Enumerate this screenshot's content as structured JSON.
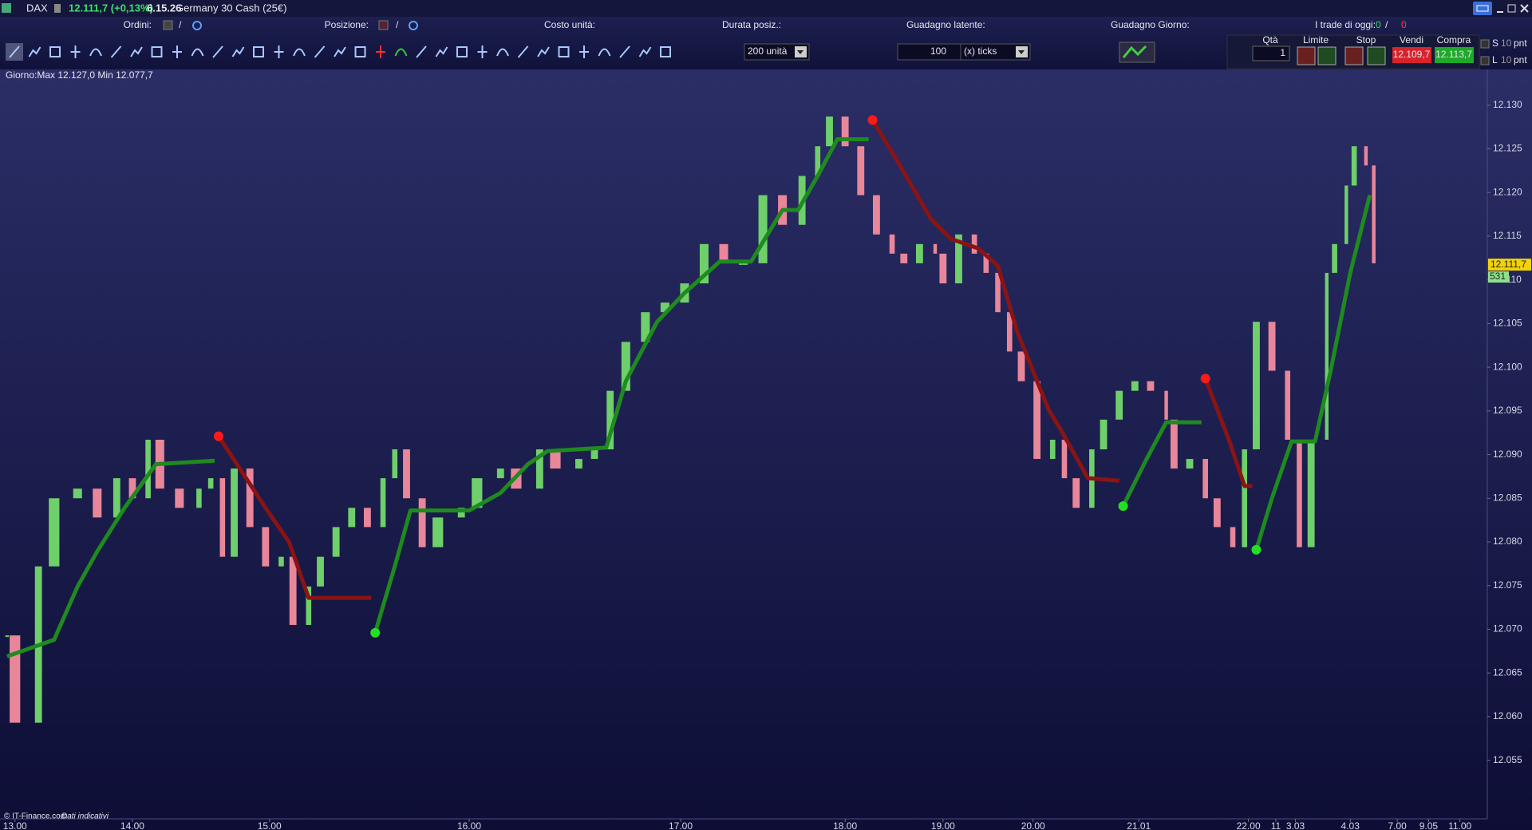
{
  "window": {
    "symbol": "DAX",
    "quote": "12.111,7 (+0,13%)",
    "clock": "6.15.26",
    "instrument": "Germany 30 Cash (25€)",
    "orders_label": "Ordini:",
    "orders_sep": "/",
    "position_label": "Posizione:",
    "position_sep": "/",
    "unit_cost_label": "Costo unità:",
    "duration_label": "Durata posiz.:",
    "latent_gain_label": "Guadagno latente:",
    "day_gain_label": "Guadagno Giorno:",
    "trades_label": "I trade di oggi:",
    "trades_won": "0",
    "trades_sep": "/",
    "trades_lost": "0",
    "units_select": "200 unità",
    "ticks_input": "100",
    "ticks_select": "(x) ticks",
    "qty_label": "Qtà",
    "qty_input": "1",
    "limit_label": "Limite",
    "stop_label": "Stop",
    "sell_label": "Vendi",
    "buy_label": "Compra",
    "sell_price": "12.109,7",
    "buy_price": "12.113,7",
    "s_label": "S",
    "l_label": "L",
    "s_pnt": "10",
    "l_pnt": "10",
    "pnt_s": "pnt",
    "pnt_l": "pnt",
    "day_range": "Giorno:Max 12.127,0 Min 12.077,7",
    "footer_source": "© IT-Finance.com",
    "footer_note": "Dati indicativi"
  },
  "chart_data": {
    "type": "candlestick",
    "up_color": "#6fcf6a",
    "down_color": "#e8869a",
    "grid": false,
    "x": [
      0,
      2,
      8,
      12,
      18,
      23,
      28,
      32,
      36,
      39,
      44,
      49,
      52,
      55,
      58,
      62,
      66,
      70,
      73,
      77,
      80,
      84,
      88,
      92,
      96,
      99,
      102,
      106,
      110,
      116,
      120,
      126,
      130,
      136,
      140,
      146,
      150,
      154,
      158,
      163,
      168,
      173,
      178,
      183,
      188,
      193,
      198,
      203,
      207,
      210,
      214,
      218,
      222,
      226,
      229,
      233,
      237,
      239,
      243,
      247,
      250,
      253,
      256,
      259,
      263,
      267,
      270,
      273,
      277,
      280,
      284,
      288,
      292,
      296,
      298,
      302,
      306,
      309,
      313,
      316,
      319,
      323,
      327,
      330,
      333,
      337,
      339,
      342,
      344,
      347,
      349
    ],
    "close": [
      12069.3,
      12059.3,
      12077.2,
      12085.0,
      12086.1,
      12082.8,
      12087.3,
      12085.0,
      12091.7,
      12086.1,
      12083.9,
      12086.1,
      12087.3,
      12078.3,
      12088.4,
      12081.7,
      12077.2,
      12078.3,
      12070.5,
      12074.9,
      12078.3,
      12081.7,
      12083.9,
      12081.7,
      12087.3,
      12090.6,
      12085.0,
      12079.4,
      12082.8,
      12083.9,
      12087.3,
      12088.4,
      12086.1,
      12090.6,
      12088.4,
      12089.5,
      12090.6,
      12097.3,
      12102.9,
      12106.3,
      12107.4,
      12109.6,
      12114.1,
      12111.9,
      12111.9,
      12119.7,
      12116.3,
      12121.9,
      12125.3,
      12128.7,
      12125.3,
      12119.7,
      12115.2,
      12113.0,
      12111.9,
      12114.1,
      12113.0,
      12109.6,
      12115.2,
      12113.0,
      12110.8,
      12106.3,
      12101.8,
      12098.4,
      12089.5,
      12091.7,
      12087.3,
      12083.9,
      12090.6,
      12094.0,
      12097.3,
      12098.4,
      12097.3,
      12094.0,
      12088.4,
      12089.5,
      12085.0,
      12081.7,
      12079.4,
      12090.6,
      12105.2,
      12099.6,
      12091.7,
      12079.4,
      12091.7,
      12110.8,
      12114.1,
      12120.8,
      12125.3,
      12123.1,
      12111.9
    ],
    "stop_lines": [
      {
        "color": "#1f8a1f",
        "x": [
          0,
          12,
          18,
          23,
          30,
          38,
          53
        ],
        "values": [
          12066.9,
          12068.8,
          12074.9,
          12078.9,
          12083.9,
          12088.9,
          12089.3
        ]
      },
      {
        "color": "#8a1414",
        "x": [
          54,
          66,
          72,
          77,
          93
        ],
        "values": [
          12092.1,
          12083.9,
          12080.0,
          12073.6,
          12073.6
        ]
      },
      {
        "color": "#1f8a1f",
        "x": [
          94,
          99,
          103,
          118,
          126,
          133,
          138,
          153,
          158,
          166,
          173,
          182,
          190,
          198,
          202,
          207,
          212,
          220
        ],
        "values": [
          12069.6,
          12077.2,
          12083.6,
          12083.6,
          12085.6,
          12088.9,
          12090.4,
          12090.8,
          12098.4,
          12105.2,
          12108.5,
          12112.1,
          12112.1,
          12118.0,
          12118.0,
          12121.9,
          12126.1,
          12126.1
        ]
      },
      {
        "color": "#8a1414",
        "x": [
          221,
          228,
          236,
          241,
          248,
          253,
          258,
          266,
          269,
          276,
          284
        ],
        "values": [
          12128.3,
          12123.1,
          12116.9,
          12114.7,
          12113.6,
          12111.6,
          12104.0,
          12095.1,
          12092.9,
          12087.3,
          12087.0
        ]
      },
      {
        "color": "#1f8a1f",
        "x": [
          285,
          291,
          296,
          305
        ],
        "values": [
          12084.1,
          12089.5,
          12093.7,
          12093.7
        ]
      },
      {
        "color": "#8a1414",
        "x": [
          306,
          312,
          316,
          318
        ],
        "values": [
          12098.7,
          12091.7,
          12086.4,
          12086.4
        ]
      },
      {
        "color": "#1f8a1f",
        "x": [
          319,
          323,
          328,
          334,
          338,
          343,
          348
        ],
        "values": [
          12079.1,
          12085.0,
          12091.5,
          12091.5,
          12099.6,
          12110.8,
          12119.7
        ]
      }
    ],
    "signals": [
      {
        "color": "#ff1a1a",
        "x": [
          54,
          221,
          306
        ],
        "values": [
          12092.1,
          12128.3,
          12098.7
        ]
      },
      {
        "color": "#22e022",
        "x": [
          94,
          285,
          319
        ],
        "values": [
          12069.6,
          12084.1,
          12079.1
        ]
      }
    ],
    "last_price": {
      "value": 12111.7,
      "label": "12.111,7"
    },
    "last_volume": "531",
    "xlim": [
      -1,
      378
    ],
    "ylim": [
      12048.3,
      12134
    ],
    "yticks": [
      {
        "value": 12055,
        "label": "12.055"
      },
      {
        "value": 12060,
        "label": "12.060"
      },
      {
        "value": 12065,
        "label": "12.065"
      },
      {
        "value": 12070,
        "label": "12.070"
      },
      {
        "value": 12075,
        "label": "12.075"
      },
      {
        "value": 12080,
        "label": "12.080"
      },
      {
        "value": 12085,
        "label": "12.085"
      },
      {
        "value": 12090,
        "label": "12.090"
      },
      {
        "value": 12095,
        "label": "12.095"
      },
      {
        "value": 12100,
        "label": "12.100"
      },
      {
        "value": 12105,
        "label": "12.105"
      },
      {
        "value": 12110,
        "label": "12.110"
      },
      {
        "value": 12115,
        "label": "12.115"
      },
      {
        "value": 12120,
        "label": "12.120"
      },
      {
        "value": 12125,
        "label": "12.125"
      },
      {
        "value": 12130,
        "label": "12.130"
      }
    ],
    "xticks": [
      {
        "value": 2,
        "label": "13.00"
      },
      {
        "value": 32,
        "label": "14.00"
      },
      {
        "value": 67,
        "label": "15.00"
      },
      {
        "value": 118,
        "label": "16.00"
      },
      {
        "value": 172,
        "label": "17.00"
      },
      {
        "value": 214,
        "label": "18.00"
      },
      {
        "value": 239,
        "label": "19.00"
      },
      {
        "value": 262,
        "label": "20.00"
      },
      {
        "value": 289,
        "label": "21.01"
      },
      {
        "value": 317,
        "label": "22.00"
      },
      {
        "value": 324,
        "label": "11"
      },
      {
        "value": 329,
        "label": "3.03"
      },
      {
        "value": 343,
        "label": "4.03"
      },
      {
        "value": 355,
        "label": "7.00"
      },
      {
        "value": 363,
        "label": "9.05"
      },
      {
        "value": 371,
        "label": "11.00"
      }
    ]
  }
}
